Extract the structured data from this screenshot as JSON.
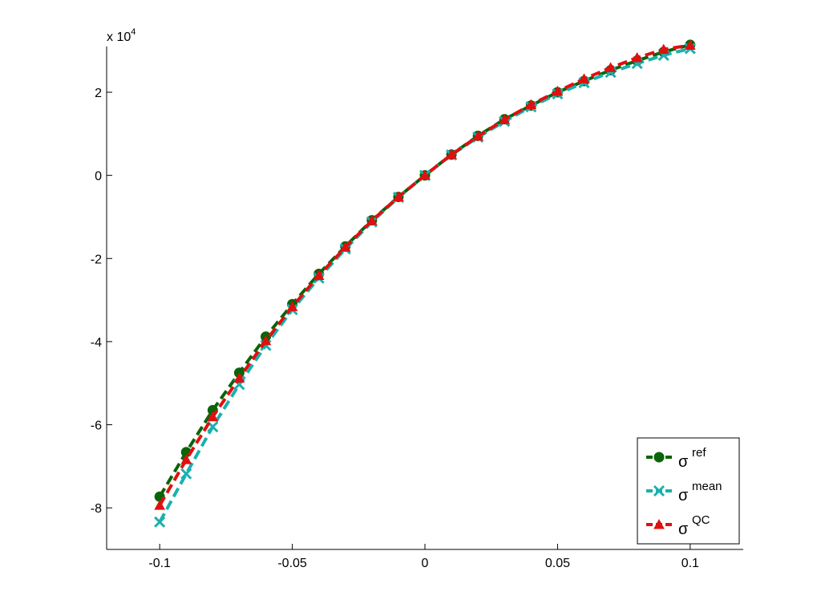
{
  "chart_data": {
    "type": "line",
    "title": "",
    "xlabel": "",
    "ylabel": "",
    "y_multiplier_label": {
      "base": "x 10",
      "exponent": "4"
    },
    "xlim": [
      -0.12,
      0.12
    ],
    "ylim": [
      -90000,
      31000
    ],
    "x_ticks": [
      -0.1,
      -0.05,
      0,
      0.05,
      0.1
    ],
    "x_tick_labels": [
      "-0.1",
      "-0.05",
      "0",
      "0.05",
      "0.1"
    ],
    "y_ticks": [
      -80000,
      -60000,
      -40000,
      -20000,
      0,
      20000
    ],
    "y_tick_labels": [
      "-8",
      "-6",
      "-4",
      "-2",
      "0",
      "2"
    ],
    "grid": false,
    "legend_position": "bottom-right",
    "x": [
      -0.1,
      -0.09,
      -0.08,
      -0.07,
      -0.06,
      -0.05,
      -0.04,
      -0.03,
      -0.02,
      -0.01,
      0,
      0.01,
      0.02,
      0.03,
      0.04,
      0.05,
      0.06,
      0.07,
      0.08,
      0.09,
      0.1
    ],
    "series": [
      {
        "name": "σ",
        "sup": "ref",
        "color": "#0a640a",
        "marker": "circle",
        "values": [
          -77300,
          -66600,
          -56500,
          -47500,
          -38800,
          -31000,
          -23700,
          -17100,
          -10800,
          -5200,
          0,
          5000,
          9500,
          13500,
          16800,
          20000,
          22700,
          25300,
          27600,
          29700,
          31400
        ]
      },
      {
        "name": "σ",
        "sup": "mean",
        "color": "#1ab0b0",
        "marker": "x",
        "values": [
          -83400,
          -71800,
          -60500,
          -50300,
          -40900,
          -32300,
          -24700,
          -17700,
          -11200,
          -5300,
          0,
          4900,
          9200,
          13000,
          16500,
          19600,
          22300,
          24800,
          26900,
          28900,
          30500
        ]
      },
      {
        "name": "σ",
        "sup": "QC",
        "color": "#e01010",
        "marker": "triangle",
        "values": [
          -79400,
          -68400,
          -58100,
          -48800,
          -39800,
          -31600,
          -24100,
          -17300,
          -10900,
          -5200,
          0,
          5000,
          9400,
          13400,
          17000,
          20200,
          23200,
          25900,
          28300,
          30300,
          31300
        ]
      }
    ]
  }
}
